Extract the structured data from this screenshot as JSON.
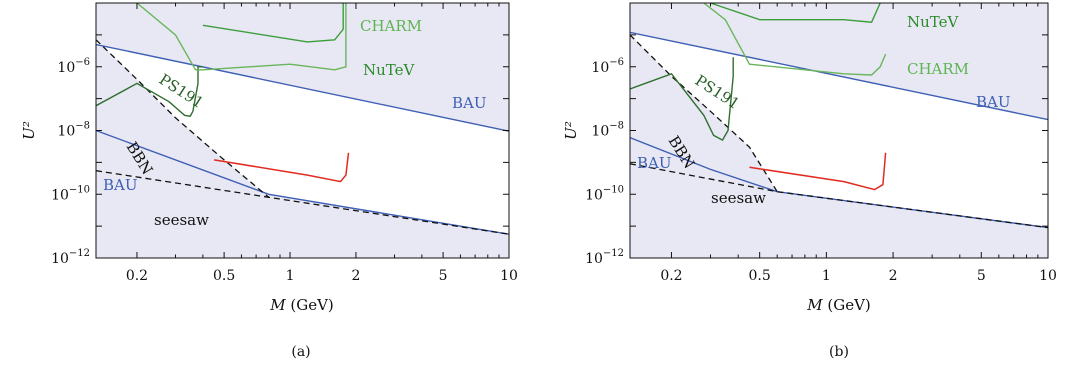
{
  "chart_data": [
    {
      "type": "line",
      "caption": "(a)",
      "xlabel": "M (GeV)",
      "ylabel": "U²",
      "x_scale": "log",
      "y_scale": "log",
      "xlim": [
        0.13,
        10
      ],
      "ylim": [
        1e-12,
        0.0001
      ],
      "xticks": [
        0.2,
        0.5,
        1,
        2,
        5,
        10
      ],
      "xtick_labels": [
        "0.2",
        "0.5",
        "1",
        "2",
        "5",
        "10"
      ],
      "yticks": [
        1e-12,
        1e-10,
        1e-08,
        1e-06
      ],
      "ytick_labels": [
        {
          "base": "10",
          "exp": "−12"
        },
        {
          "base": "10",
          "exp": "−10"
        },
        {
          "base": "10",
          "exp": "−8"
        },
        {
          "base": "10",
          "exp": "−6"
        }
      ],
      "series": [
        {
          "name": "BAU",
          "style": "blue-solid",
          "x": [
            0.13,
            10
          ],
          "y": [
            5e-06,
            9.5e-09
          ]
        },
        {
          "name": "BAU",
          "style": "blue-solid",
          "x": [
            0.13,
            0.8,
            10
          ],
          "y": [
            1e-08,
            1e-10,
            5.6e-12
          ]
        },
        {
          "name": "seesaw",
          "style": "black-dashed",
          "x": [
            0.13,
            0.8,
            10
          ],
          "y": [
            5.5e-10,
            8e-11,
            5.6e-12
          ]
        },
        {
          "name": "BBN",
          "style": "black-dashed",
          "x": [
            0.13,
            0.2,
            0.3,
            0.5,
            0.8
          ],
          "y": [
            7e-06,
            4e-07,
            2.5e-08,
            1.2e-09,
            8e-11
          ]
        },
        {
          "name": "PS191",
          "style": "darkgreen-solid",
          "x": [
            0.13,
            0.2,
            0.28,
            0.33,
            0.35,
            0.36,
            0.38,
            0.38,
            0.4
          ],
          "y": [
            6e-08,
            3e-07,
            8e-08,
            3e-08,
            2.8e-08,
            4e-08,
            3e-07,
            1e-06,
            1e-06
          ]
        },
        {
          "name": "NuTeV",
          "style": "green-solid",
          "x": [
            0.4,
            1.2,
            1.6,
            1.75,
            1.75
          ],
          "y": [
            2e-05,
            6e-06,
            7e-06,
            1.5e-05,
            0.0001
          ]
        },
        {
          "name": "CHARM",
          "style": "lightgreen-solid",
          "x": [
            0.2,
            0.3,
            0.37,
            0.4,
            1,
            1.6,
            1.8,
            1.8
          ],
          "y": [
            0.0001,
            1e-05,
            8e-07,
            8e-07,
            1.2e-06,
            8e-07,
            1e-06,
            0.0001
          ]
        },
        {
          "name": "",
          "style": "red-solid",
          "x": [
            0.45,
            1.2,
            1.7,
            1.8,
            1.85
          ],
          "y": [
            1.2e-09,
            4e-10,
            2.5e-10,
            4e-10,
            2e-09
          ]
        }
      ],
      "labels": [
        "CHARM",
        "NuTeV",
        "PS191",
        "BAU",
        "BBN",
        "BAU",
        "seesaw"
      ]
    },
    {
      "type": "line",
      "caption": "(b)",
      "xlabel": "M (GeV)",
      "ylabel": "U²",
      "x_scale": "log",
      "y_scale": "log",
      "xlim": [
        0.13,
        10
      ],
      "ylim": [
        1e-12,
        0.0001
      ],
      "xticks": [
        0.2,
        0.5,
        1,
        2,
        5,
        10
      ],
      "xtick_labels": [
        "0.2",
        "0.5",
        "1",
        "2",
        "5",
        "10"
      ],
      "yticks": [
        1e-12,
        1e-10,
        1e-08,
        1e-06
      ],
      "ytick_labels": [
        {
          "base": "10",
          "exp": "−12"
        },
        {
          "base": "10",
          "exp": "−10"
        },
        {
          "base": "10",
          "exp": "−8"
        },
        {
          "base": "10",
          "exp": "−6"
        }
      ],
      "series": [
        {
          "name": "BAU",
          "style": "blue-solid",
          "x": [
            0.13,
            10
          ],
          "y": [
            1.2e-05,
            2.2e-08
          ]
        },
        {
          "name": "BAU",
          "style": "blue-solid",
          "x": [
            0.13,
            0.3,
            0.6,
            10
          ],
          "y": [
            6e-09,
            6e-10,
            1.2e-10,
            9e-12
          ]
        },
        {
          "name": "seesaw",
          "style": "black-dashed",
          "x": [
            0.13,
            0.6,
            10
          ],
          "y": [
            9e-10,
            1.2e-10,
            9e-12
          ]
        },
        {
          "name": "BBN",
          "style": "black-dashed",
          "x": [
            0.13,
            0.2,
            0.3,
            0.45,
            0.6
          ],
          "y": [
            1e-05,
            5e-07,
            4e-08,
            3e-09,
            1.2e-10
          ]
        },
        {
          "name": "PS191",
          "style": "darkgreen-solid",
          "x": [
            0.13,
            0.2,
            0.28,
            0.31,
            0.34,
            0.36,
            0.38,
            0.38
          ],
          "y": [
            2e-07,
            6e-07,
            3e-08,
            7e-09,
            5e-09,
            1e-08,
            5e-07,
            2e-06
          ]
        },
        {
          "name": "NuTeV",
          "style": "green-solid",
          "x": [
            0.3,
            0.5,
            1.2,
            1.6,
            1.75
          ],
          "y": [
            0.0001,
            3e-05,
            3e-05,
            2.5e-05,
            0.0001
          ]
        },
        {
          "name": "CHARM",
          "style": "lightgreen-solid",
          "x": [
            0.28,
            0.35,
            0.45,
            1.2,
            1.6,
            1.75,
            1.85
          ],
          "y": [
            0.0001,
            3e-05,
            1.2e-06,
            6e-07,
            5.5e-07,
            1e-06,
            2.5e-06
          ]
        },
        {
          "name": "",
          "style": "red-solid",
          "x": [
            0.45,
            1.2,
            1.65,
            1.8,
            1.85
          ],
          "y": [
            7e-10,
            2.5e-10,
            1.4e-10,
            2e-10,
            2e-09
          ]
        }
      ],
      "labels": [
        "NuTeV",
        "CHARM",
        "PS191",
        "BAU",
        "BBN",
        "BAU",
        "seesaw"
      ]
    }
  ]
}
